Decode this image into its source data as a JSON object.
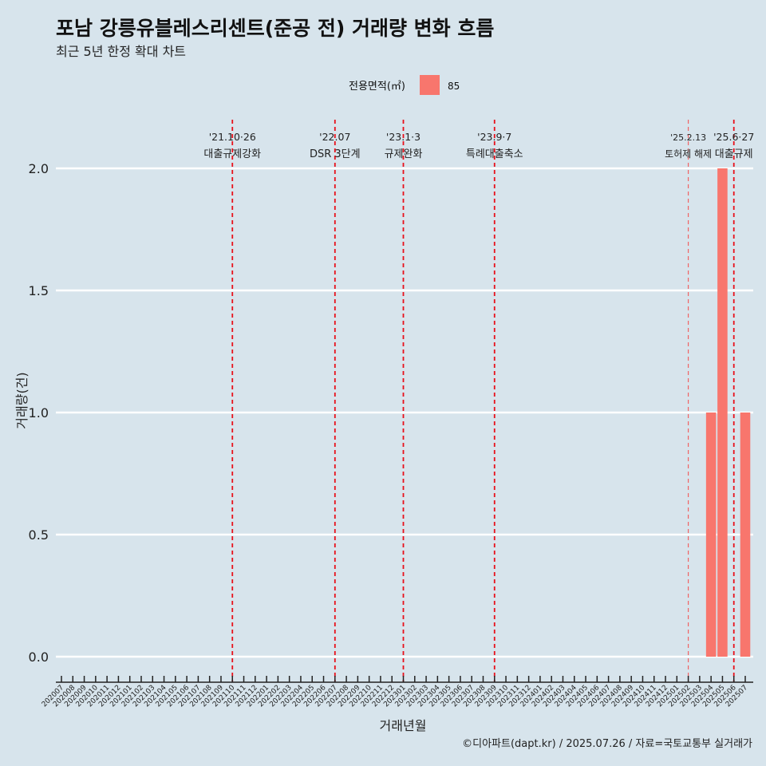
{
  "chart_data": {
    "type": "bar",
    "title": "포남 강릉유블레스리센트(준공 전) 거래량 변화 흐름",
    "subtitle": "최근 5년 한정 확대 차트",
    "xlabel": "거래년월",
    "ylabel": "거래량(건)",
    "ylim": [
      -0.1,
      2.2
    ],
    "yticks": [
      0.0,
      0.5,
      1.0,
      1.5,
      2.0
    ],
    "ytick_labels": [
      "0.0",
      "0.5",
      "1.0",
      "1.5",
      "2.0"
    ],
    "grid": true,
    "legend": {
      "position": "top",
      "title": "전용면적(㎡)",
      "entries": [
        {
          "label": "85",
          "color": "#f8766d"
        }
      ]
    },
    "categories": [
      "202007",
      "202008",
      "202009",
      "202010",
      "202011",
      "202012",
      "202101",
      "202102",
      "202103",
      "202104",
      "202105",
      "202106",
      "202107",
      "202108",
      "202109",
      "202110",
      "202111",
      "202112",
      "202201",
      "202202",
      "202203",
      "202204",
      "202205",
      "202206",
      "202207",
      "202208",
      "202209",
      "202210",
      "202211",
      "202212",
      "202301",
      "202302",
      "202303",
      "202304",
      "202305",
      "202306",
      "202307",
      "202308",
      "202309",
      "202310",
      "202311",
      "202312",
      "202401",
      "202402",
      "202403",
      "202404",
      "202405",
      "202406",
      "202407",
      "202408",
      "202409",
      "202410",
      "202411",
      "202412",
      "202501",
      "202502",
      "202503",
      "202504",
      "202505",
      "202506",
      "202507"
    ],
    "series": [
      {
        "name": "85",
        "color": "#f8766d",
        "values": [
          0,
          0,
          0,
          0,
          0,
          0,
          0,
          0,
          0,
          0,
          0,
          0,
          0,
          0,
          0,
          0,
          0,
          0,
          0,
          0,
          0,
          0,
          0,
          0,
          0,
          0,
          0,
          0,
          0,
          0,
          0,
          0,
          0,
          0,
          0,
          0,
          0,
          0,
          0,
          0,
          0,
          0,
          0,
          0,
          0,
          0,
          0,
          0,
          0,
          0,
          0,
          0,
          0,
          0,
          0,
          0,
          0,
          1,
          2,
          0,
          1
        ]
      }
    ],
    "annotations": [
      {
        "category": "202110",
        "date": "'21.10·26",
        "label": "대출규제강화",
        "color": "#e8101a"
      },
      {
        "category": "202207",
        "date": "'22.07",
        "label": "DSR 3단계",
        "color": "#e8101a"
      },
      {
        "category": "202301",
        "date": "'23.1·3",
        "label": "규제완화",
        "color": "#e8101a"
      },
      {
        "category": "202309",
        "date": "'23.9·7",
        "label": "특례대출축소",
        "color": "#e8101a"
      },
      {
        "category": "202502",
        "date": "'25.2.13",
        "label": "토허제 해제",
        "color": "#f06464"
      },
      {
        "category": "202506",
        "date": "'25.6·27",
        "label": "대출규제",
        "color": "#e8101a"
      }
    ]
  },
  "caption": "©디아파트(dapt.kr) / 2025.07.26 / 자료=국토교통부 실거래가"
}
